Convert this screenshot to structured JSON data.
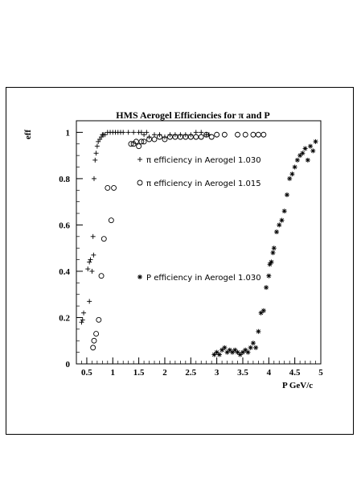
{
  "chart_data": {
    "type": "scatter",
    "title": "HMS Aerogel Efficiencies for π and P",
    "xlabel": "P GeV/c",
    "ylabel": "eff",
    "xlim": [
      0.3,
      5.0
    ],
    "ylim": [
      0,
      1.05
    ],
    "x_ticks": [
      0.5,
      1,
      1.5,
      2,
      2.5,
      3,
      3.5,
      4,
      4.5,
      5
    ],
    "x_tick_labels": [
      "0.5",
      "1",
      "1.5",
      "2",
      "2.5",
      "3",
      "3.5",
      "4",
      "4.5",
      "5"
    ],
    "y_ticks": [
      0,
      0.2,
      0.4,
      0.6,
      0.8,
      1
    ],
    "y_tick_labels": [
      "0",
      "0.2",
      "0.4",
      "0.6",
      "0.8",
      "1"
    ],
    "grid": false,
    "series": [
      {
        "name": "π efficiency in Aerogel 1.030",
        "marker": "plus",
        "points": [
          [
            0.4,
            0.18
          ],
          [
            0.42,
            0.19
          ],
          [
            0.44,
            0.22
          ],
          [
            0.52,
            0.41
          ],
          [
            0.55,
            0.27
          ],
          [
            0.55,
            0.44
          ],
          [
            0.57,
            0.45
          ],
          [
            0.6,
            0.4
          ],
          [
            0.62,
            0.55
          ],
          [
            0.63,
            0.47
          ],
          [
            0.64,
            0.8
          ],
          [
            0.66,
            0.88
          ],
          [
            0.68,
            0.91
          ],
          [
            0.7,
            0.94
          ],
          [
            0.72,
            0.96
          ],
          [
            0.75,
            0.97
          ],
          [
            0.78,
            0.98
          ],
          [
            0.8,
            0.99
          ],
          [
            0.82,
            0.99
          ],
          [
            0.85,
            0.99
          ],
          [
            0.9,
            1.0
          ],
          [
            0.95,
            1.0
          ],
          [
            1.0,
            1.0
          ],
          [
            1.05,
            1.0
          ],
          [
            1.1,
            1.0
          ],
          [
            1.15,
            1.0
          ],
          [
            1.2,
            1.0
          ],
          [
            1.3,
            1.0
          ],
          [
            1.4,
            1.0
          ],
          [
            1.5,
            1.0
          ],
          [
            1.55,
            1.0
          ],
          [
            1.6,
            0.99
          ],
          [
            1.65,
            1.0
          ],
          [
            1.7,
            0.98
          ],
          [
            1.8,
            0.99
          ],
          [
            1.9,
            0.99
          ],
          [
            2.0,
            0.98
          ],
          [
            2.1,
            0.99
          ],
          [
            2.2,
            0.99
          ],
          [
            2.3,
            0.99
          ],
          [
            2.4,
            0.99
          ],
          [
            2.5,
            0.99
          ],
          [
            2.6,
            1.0
          ],
          [
            2.7,
            1.0
          ],
          [
            2.8,
            0.99
          ],
          [
            2.85,
            0.99
          ]
        ]
      },
      {
        "name": "π efficiency in Aerogel 1.015",
        "marker": "circle",
        "points": [
          [
            0.62,
            0.07
          ],
          [
            0.64,
            0.1
          ],
          [
            0.68,
            0.13
          ],
          [
            0.73,
            0.19
          ],
          [
            0.78,
            0.38
          ],
          [
            0.83,
            0.54
          ],
          [
            0.9,
            0.76
          ],
          [
            0.97,
            0.62
          ],
          [
            1.02,
            0.76
          ],
          [
            1.35,
            0.95
          ],
          [
            1.4,
            0.95
          ],
          [
            1.45,
            0.96
          ],
          [
            1.5,
            0.94
          ],
          [
            1.55,
            0.96
          ],
          [
            1.6,
            0.96
          ],
          [
            1.7,
            0.97
          ],
          [
            1.8,
            0.97
          ],
          [
            1.9,
            0.98
          ],
          [
            2.0,
            0.97
          ],
          [
            2.1,
            0.98
          ],
          [
            2.2,
            0.98
          ],
          [
            2.3,
            0.98
          ],
          [
            2.4,
            0.98
          ],
          [
            2.5,
            0.98
          ],
          [
            2.6,
            0.98
          ],
          [
            2.7,
            0.98
          ],
          [
            2.8,
            0.99
          ],
          [
            2.9,
            0.98
          ],
          [
            3.0,
            0.99
          ],
          [
            3.15,
            0.99
          ],
          [
            3.4,
            0.99
          ],
          [
            3.55,
            0.99
          ],
          [
            3.7,
            0.99
          ],
          [
            3.8,
            0.99
          ],
          [
            3.9,
            0.99
          ]
        ]
      },
      {
        "name": "P efficiency in Aerogel 1.030",
        "marker": "asterisk",
        "points": [
          [
            2.95,
            0.04
          ],
          [
            3.0,
            0.05
          ],
          [
            3.05,
            0.04
          ],
          [
            3.1,
            0.06
          ],
          [
            3.15,
            0.07
          ],
          [
            3.2,
            0.05
          ],
          [
            3.25,
            0.06
          ],
          [
            3.3,
            0.05
          ],
          [
            3.35,
            0.06
          ],
          [
            3.4,
            0.05
          ],
          [
            3.45,
            0.04
          ],
          [
            3.5,
            0.05
          ],
          [
            3.55,
            0.06
          ],
          [
            3.6,
            0.05
          ],
          [
            3.65,
            0.07
          ],
          [
            3.7,
            0.09
          ],
          [
            3.75,
            0.07
          ],
          [
            3.8,
            0.14
          ],
          [
            3.85,
            0.22
          ],
          [
            3.9,
            0.23
          ],
          [
            3.95,
            0.33
          ],
          [
            4.0,
            0.38
          ],
          [
            4.02,
            0.43
          ],
          [
            4.05,
            0.44
          ],
          [
            4.08,
            0.48
          ],
          [
            4.1,
            0.5
          ],
          [
            4.15,
            0.57
          ],
          [
            4.2,
            0.6
          ],
          [
            4.25,
            0.62
          ],
          [
            4.3,
            0.66
          ],
          [
            4.35,
            0.73
          ],
          [
            4.4,
            0.8
          ],
          [
            4.45,
            0.82
          ],
          [
            4.5,
            0.85
          ],
          [
            4.55,
            0.88
          ],
          [
            4.6,
            0.9
          ],
          [
            4.65,
            0.91
          ],
          [
            4.7,
            0.93
          ],
          [
            4.75,
            0.88
          ],
          [
            4.8,
            0.94
          ],
          [
            4.85,
            0.92
          ],
          [
            4.9,
            0.96
          ]
        ]
      }
    ]
  }
}
